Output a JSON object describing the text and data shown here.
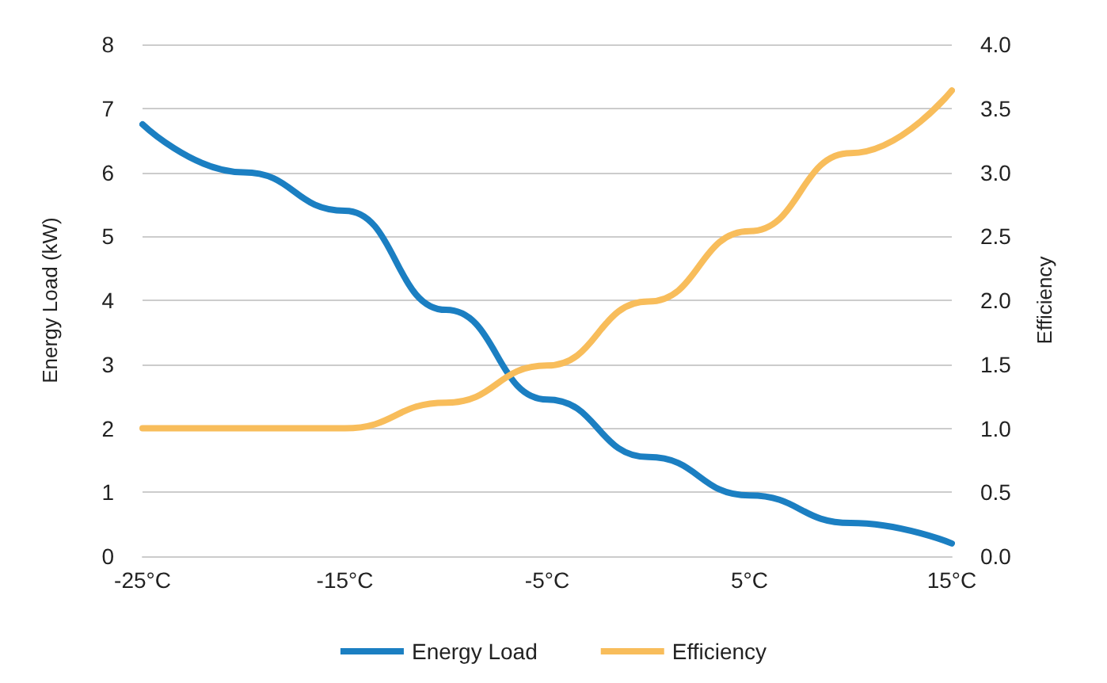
{
  "chart_data": {
    "type": "line",
    "x": [
      -25,
      -20,
      -15,
      -10,
      -5,
      0,
      5,
      10,
      15
    ],
    "series": [
      {
        "name": "Energy Load",
        "color": "#1b7fc2",
        "values": [
          6.75,
          6.0,
          5.4,
          3.85,
          2.45,
          1.55,
          0.95,
          0.52,
          0.2
        ]
      },
      {
        "name": "Efficiency",
        "color": "#f8bd5b",
        "axis": "y2",
        "values": [
          1.0,
          1.0,
          1.0,
          1.2,
          1.49,
          1.99,
          2.54,
          3.15,
          3.64
        ]
      }
    ],
    "xlim": [
      -25,
      15
    ],
    "xticks": [
      {
        "value": -25,
        "label": "-25°C"
      },
      {
        "value": -15,
        "label": "-15°C"
      },
      {
        "value": -5,
        "label": "-5°C"
      },
      {
        "value": 5,
        "label": "5°C"
      },
      {
        "value": 15,
        "label": "15°C"
      }
    ],
    "ylim": [
      0,
      8
    ],
    "yticks": [
      0,
      1,
      2,
      3,
      4,
      5,
      6,
      7,
      8
    ],
    "y2lim": [
      0,
      4
    ],
    "y2ticks": [
      {
        "value": 0,
        "label": "0.0"
      },
      {
        "value": 0.5,
        "label": "0.5"
      },
      {
        "value": 1,
        "label": "1.0"
      },
      {
        "value": 1.5,
        "label": "1.5"
      },
      {
        "value": 2,
        "label": "2.0"
      },
      {
        "value": 2.5,
        "label": "2.5"
      },
      {
        "value": 3,
        "label": "3.0"
      },
      {
        "value": 3.5,
        "label": "3.5"
      },
      {
        "value": 4,
        "label": "4.0"
      }
    ],
    "ylabel": "Energy Load (kW)",
    "y2label": "Efficiency",
    "grid": "y",
    "legend": "bottom",
    "marker": "none",
    "line_style": "solid"
  }
}
